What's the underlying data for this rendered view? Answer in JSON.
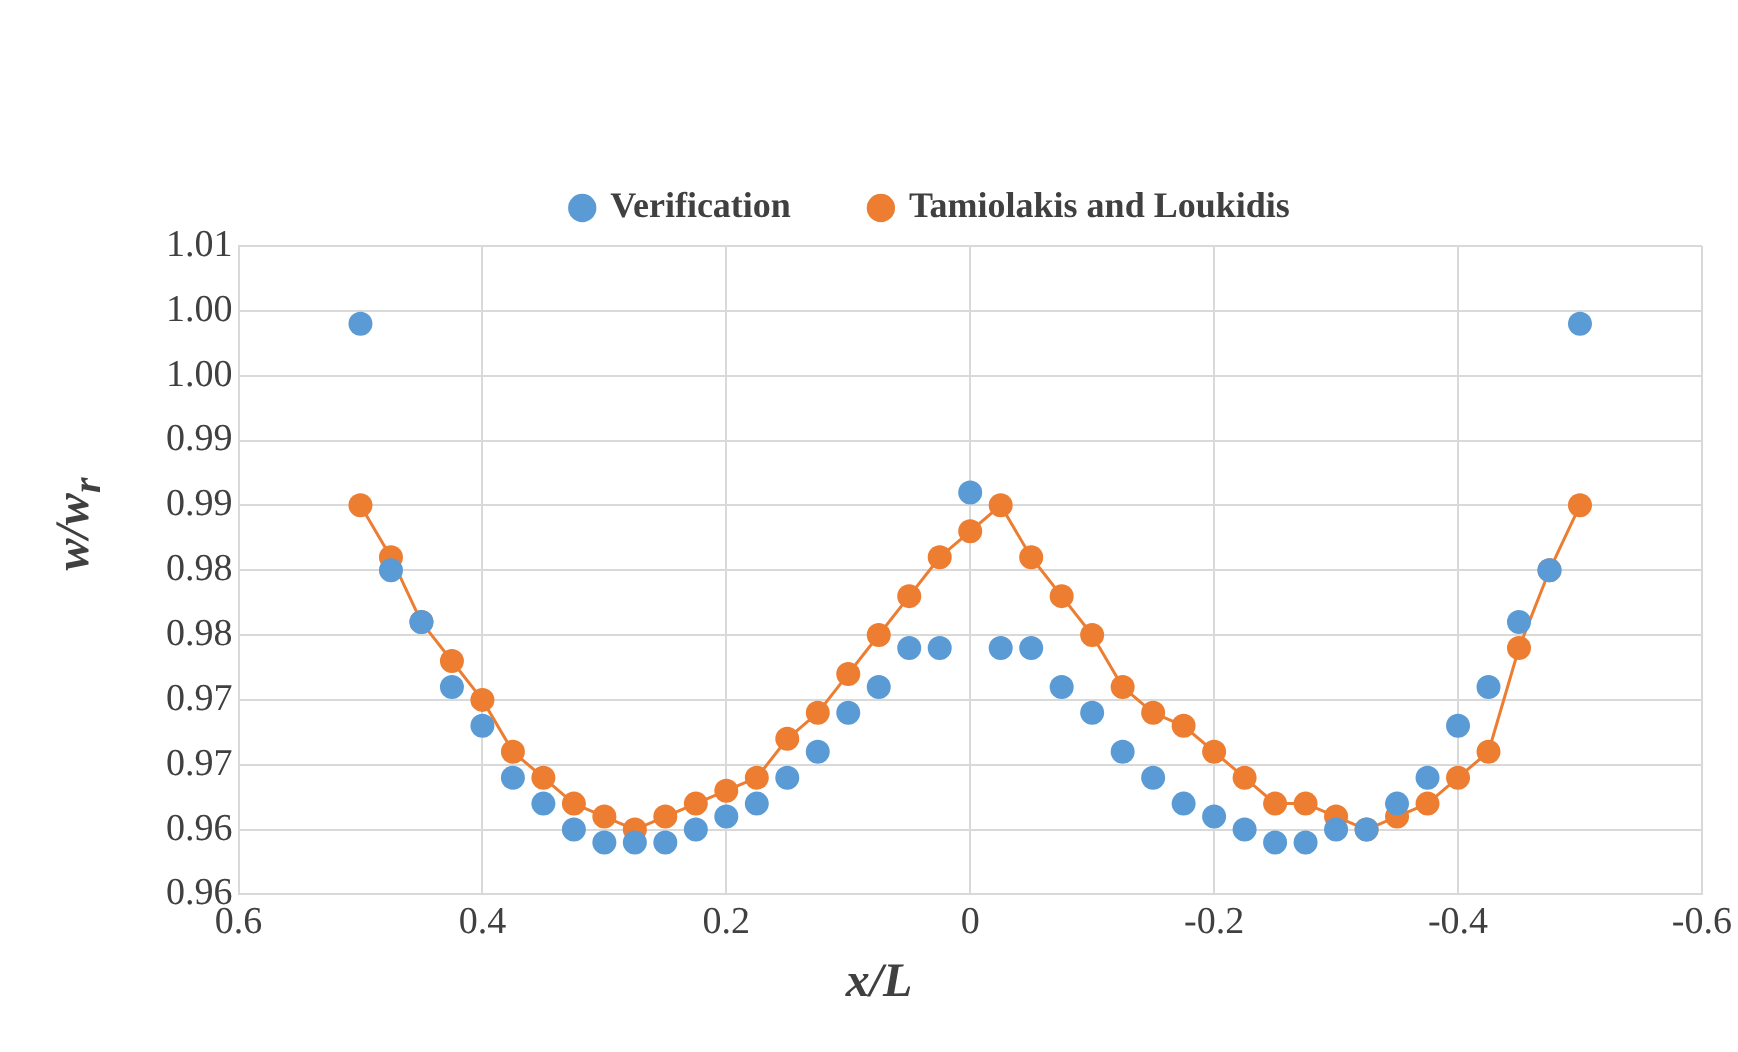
{
  "chart_data": {
    "type": "scatter",
    "xlabel": "x/L",
    "ylabel": "w/w$_{r}$",
    "x": [
      0.5,
      0.475,
      0.45,
      0.425,
      0.4,
      0.375,
      0.35,
      0.325,
      0.3,
      0.275,
      0.25,
      0.225,
      0.2,
      0.175,
      0.15,
      0.125,
      0.1,
      0.075,
      0.05,
      0.025,
      0,
      -0.025,
      -0.05,
      -0.075,
      -0.1,
      -0.125,
      -0.15,
      -0.175,
      -0.2,
      -0.225,
      -0.25,
      -0.275,
      -0.3,
      -0.325,
      -0.35,
      -0.375,
      -0.4,
      -0.425,
      -0.45,
      -0.475,
      -0.5
    ],
    "series": [
      {
        "name": "Verification",
        "color": "#5b9bd5",
        "values": [
          0.999,
          0.98,
          0.976,
          0.971,
          0.968,
          0.964,
          0.962,
          0.96,
          0.959,
          0.959,
          0.959,
          0.96,
          0.961,
          0.962,
          0.964,
          0.966,
          0.969,
          0.971,
          0.974,
          0.974,
          0.986,
          0.974,
          0.974,
          0.971,
          0.969,
          0.966,
          0.964,
          0.962,
          0.961,
          0.96,
          0.959,
          0.959,
          0.96,
          0.96,
          0.962,
          0.964,
          0.968,
          0.971,
          0.976,
          0.98,
          0.999
        ]
      },
      {
        "name": "Tamiolakis and Loukidis",
        "type": "line",
        "color": "#ed7d31",
        "values": [
          0.985,
          0.981,
          0.976,
          0.973,
          0.97,
          0.966,
          0.964,
          0.962,
          0.961,
          0.96,
          0.961,
          0.962,
          0.963,
          0.964,
          0.967,
          0.969,
          0.972,
          0.975,
          0.978,
          0.981,
          0.983,
          0.985,
          0.981,
          0.978,
          0.975,
          0.971,
          0.969,
          0.968,
          0.966,
          0.964,
          0.962,
          0.962,
          0.961,
          0.96,
          0.961,
          0.962,
          0.964,
          0.966,
          0.974,
          0.98,
          0.985
        ]
      }
    ],
    "xlim": [
      0.6,
      -0.6
    ],
    "xticks": [
      0.6,
      0.4,
      0.2,
      0,
      -0.2,
      -0.4,
      -0.6
    ],
    "ylim": [
      0.955,
      1.005
    ],
    "yticks": [
      {
        "value": 0.955,
        "label": "0.96"
      },
      {
        "value": 0.96,
        "label": "0.96"
      },
      {
        "value": 0.965,
        "label": "0.97"
      },
      {
        "value": 0.97,
        "label": "0.97"
      },
      {
        "value": 0.975,
        "label": "0.98"
      },
      {
        "value": 0.98,
        "label": "0.98"
      },
      {
        "value": 0.985,
        "label": "0.99"
      },
      {
        "value": 0.99,
        "label": "0.99"
      },
      {
        "value": 0.995,
        "label": "1.00"
      },
      {
        "value": 1.0,
        "label": "1.00"
      },
      {
        "value": 1.005,
        "label": "1.01"
      }
    ],
    "grid": true,
    "legend": "top",
    "marker": "circle",
    "line_style": "solid"
  }
}
